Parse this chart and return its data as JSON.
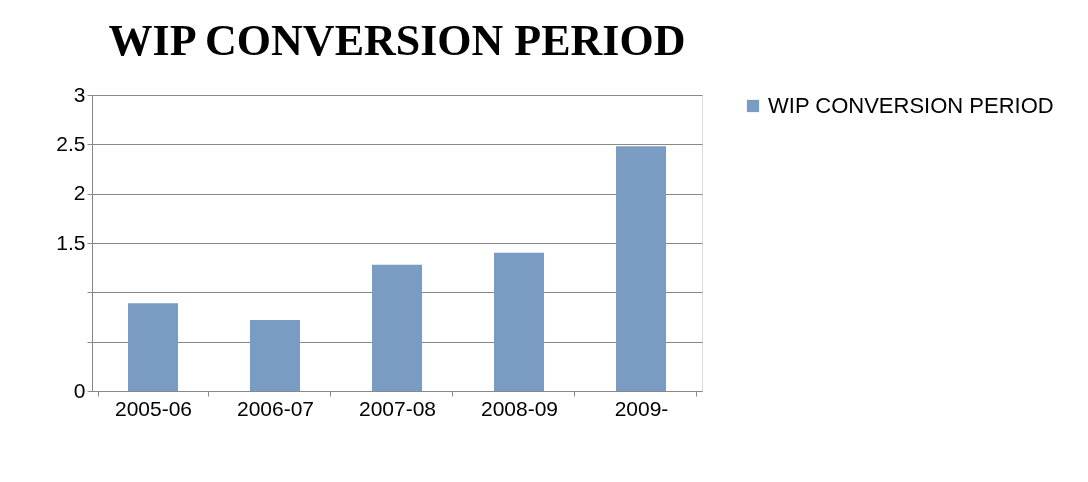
{
  "chart_data": {
    "type": "bar",
    "title": "WIP CONVERSION PERIOD",
    "categories": [
      "2005-06",
      "2006-07",
      "2007-08",
      "2008-09",
      "2009-"
    ],
    "series": [
      {
        "name": "WIP CONVERSION PERIOD",
        "color": "#7a9cc2",
        "values": [
          0.89,
          0.72,
          1.28,
          1.4,
          2.48
        ]
      }
    ],
    "ylim": [
      0,
      3
    ],
    "yticks": [
      0,
      {
        "value": 0.5,
        "label": null
      },
      {
        "value": 1,
        "label": null
      },
      1.5,
      2,
      2.5,
      3
    ],
    "grid": "y",
    "legend": "right"
  }
}
